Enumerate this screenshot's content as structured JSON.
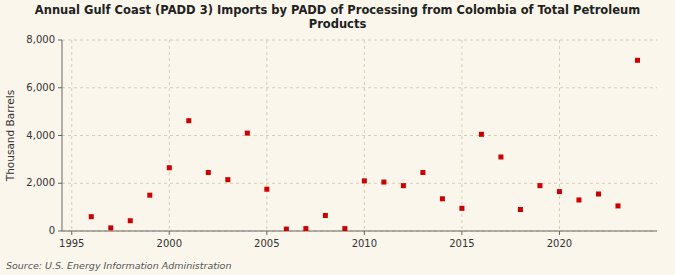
{
  "chart_data": {
    "type": "scatter",
    "title": "Annual Gulf Coast (PADD 3) Imports by PADD of Processing from Colombia of Total Petroleum\nProducts",
    "y_label": "Thousand Barrels",
    "source": "Source: U.S. Energy Information Administration",
    "x": [
      1996,
      1997,
      1998,
      1999,
      2000,
      2001,
      2002,
      2003,
      2004,
      2005,
      2006,
      2007,
      2008,
      2009,
      2010,
      2011,
      2012,
      2013,
      2014,
      2015,
      2016,
      2017,
      2018,
      2019,
      2020,
      2021,
      2022,
      2023,
      2024
    ],
    "values": [
      600,
      130,
      430,
      1500,
      2650,
      4620,
      2450,
      2150,
      4100,
      1750,
      80,
      100,
      650,
      100,
      2100,
      2050,
      1900,
      2450,
      1350,
      950,
      4050,
      3100,
      900,
      1900,
      1650,
      1300,
      1550,
      1050,
      7150
    ],
    "color": "#cc0000",
    "marker": "square",
    "xlim": [
      1994.5,
      2025
    ],
    "ylim": [
      0,
      8000
    ],
    "xticks": [
      1995,
      2000,
      2005,
      2010,
      2015,
      2020
    ],
    "yticks": [
      0,
      {
        "value": 2000,
        "label": "2,000"
      },
      {
        "value": 4000,
        "label": "4,000"
      },
      {
        "value": 6000,
        "label": "6,000"
      },
      {
        "value": 8000,
        "label": "8,000"
      }
    ],
    "grid": true
  }
}
